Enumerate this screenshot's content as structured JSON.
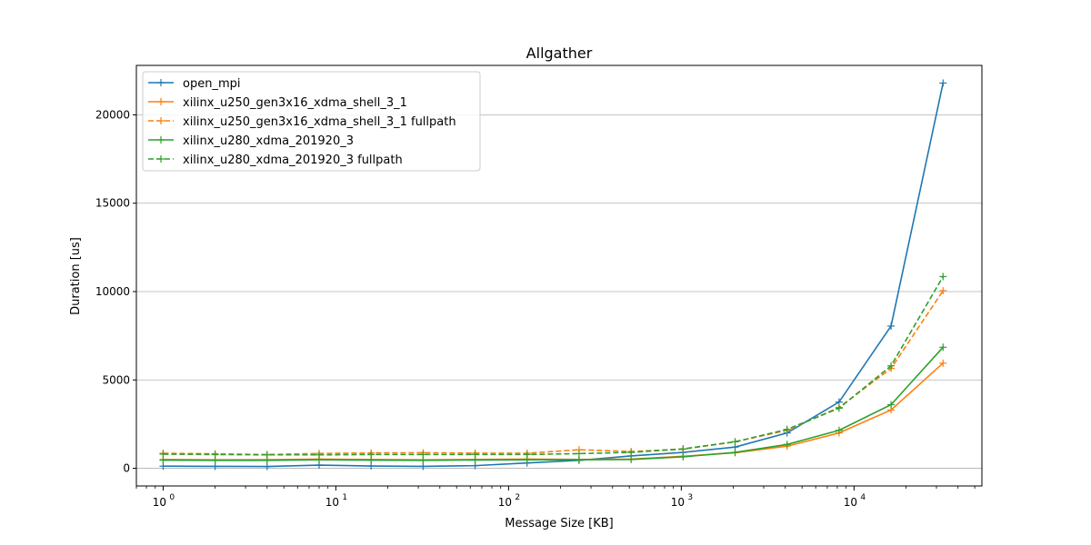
{
  "chart_data": {
    "type": "line",
    "title": "Allgather",
    "xlabel": "Message Size [KB]",
    "ylabel": "Duration [us]",
    "xscale": "log",
    "xlim": [
      0.7,
      55000
    ],
    "ylim": [
      -1000,
      22800
    ],
    "yticks": [
      0,
      5000,
      10000,
      15000,
      20000
    ],
    "xticks": [
      {
        "value": 1,
        "base": "10",
        "exp": "0"
      },
      {
        "value": 10,
        "base": "10",
        "exp": "1"
      },
      {
        "value": 100,
        "base": "10",
        "exp": "2"
      },
      {
        "value": 1000,
        "base": "10",
        "exp": "3"
      },
      {
        "value": 10000,
        "base": "10",
        "exp": "4"
      }
    ],
    "grid": "y-major",
    "legend_position": "top-left",
    "x": [
      1,
      2,
      4,
      8,
      16,
      32,
      64,
      128,
      256,
      512,
      1024,
      2048,
      4096,
      8192,
      16384,
      32768
    ],
    "series": [
      {
        "name": "open_mpi",
        "color": "#1f77b4",
        "dashed": false,
        "values": [
          120,
          110,
          100,
          180,
          130,
          110,
          150,
          300,
          450,
          700,
          900,
          1200,
          2000,
          3750,
          8050,
          21800
        ]
      },
      {
        "name": "xilinx_u250_gen3x16_xdma_shell_3_1",
        "color": "#ff7f0e",
        "dashed": false,
        "values": [
          500,
          480,
          490,
          520,
          500,
          480,
          500,
          520,
          500,
          520,
          680,
          880,
          1250,
          2000,
          3300,
          5950
        ]
      },
      {
        "name": "xilinx_u250_gen3x16_xdma_shell_3_1 fullpath",
        "color": "#ff7f0e",
        "dashed": true,
        "values": [
          850,
          820,
          780,
          840,
          870,
          880,
          860,
          850,
          1050,
          950,
          1080,
          1500,
          2150,
          3450,
          5650,
          10050
        ]
      },
      {
        "name": "xilinx_u280_xdma_201920_3",
        "color": "#2ca02c",
        "dashed": false,
        "values": [
          460,
          450,
          450,
          480,
          460,
          450,
          470,
          480,
          480,
          500,
          650,
          900,
          1350,
          2150,
          3600,
          6850
        ]
      },
      {
        "name": "xilinx_u280_xdma_201920_3 fullpath",
        "color": "#2ca02c",
        "dashed": true,
        "values": [
          800,
          780,
          760,
          760,
          780,
          780,
          780,
          780,
          830,
          900,
          1100,
          1500,
          2200,
          3400,
          5800,
          10850
        ]
      }
    ]
  }
}
